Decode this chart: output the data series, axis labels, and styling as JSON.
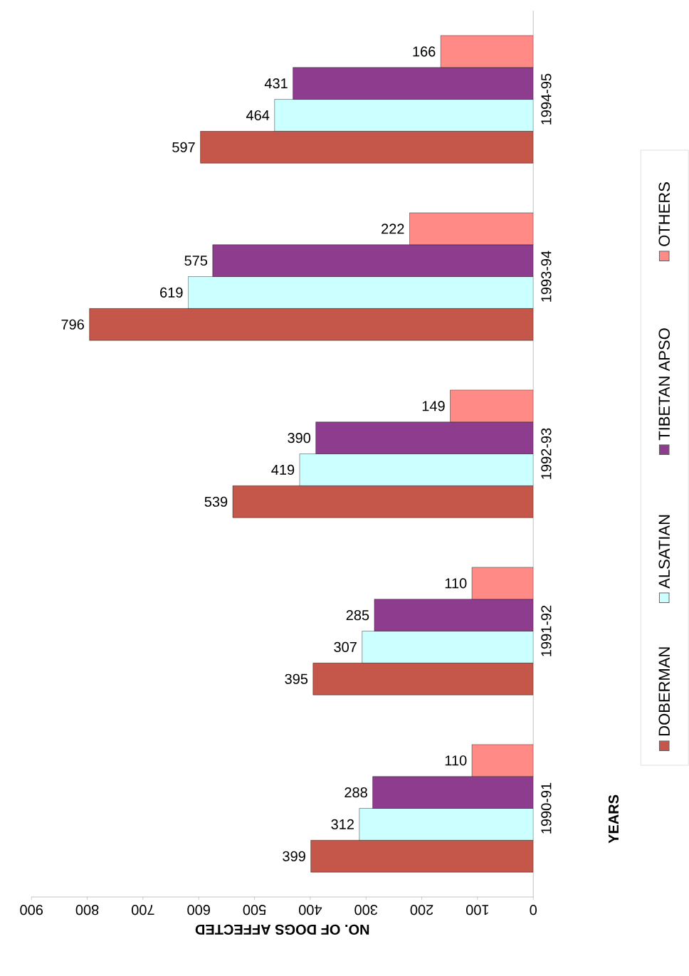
{
  "chart_data": {
    "type": "bar",
    "orientation": "horizontal",
    "xlabel": "NO. OF DOGS AFFECTED",
    "ylabel": "YEARS",
    "categories": [
      "1994-95",
      "1993-94",
      "1992-93",
      "1991-92",
      "1990-91"
    ],
    "series": [
      {
        "name": "DOBERMAN",
        "color": "#c4564a",
        "values": [
          597,
          796,
          539,
          395,
          399
        ]
      },
      {
        "name": "ALSATIAN",
        "color": "#ccffff",
        "values": [
          464,
          619,
          419,
          307,
          312
        ]
      },
      {
        "name": "TIBETAN APSO",
        "color": "#8e3c8e",
        "values": [
          431,
          575,
          390,
          285,
          288
        ]
      },
      {
        "name": "OTHERS",
        "color": "#ff8a86",
        "values": [
          166,
          222,
          149,
          110,
          110
        ]
      }
    ],
    "xlim": [
      900,
      0
    ],
    "xticks": [
      0,
      100,
      200,
      300,
      400,
      500,
      600,
      700,
      800,
      900
    ],
    "data_labels": true,
    "legend": "right"
  }
}
